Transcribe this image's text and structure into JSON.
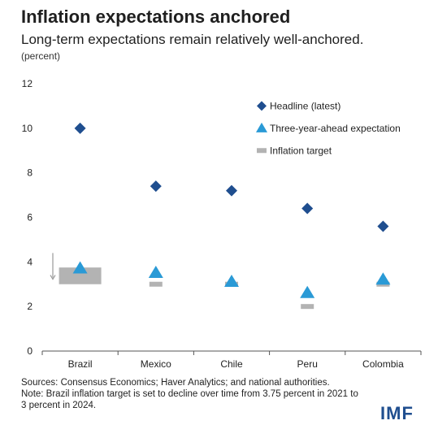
{
  "chart_data": {
    "type": "scatter",
    "title": "Inflation expectations anchored",
    "subtitle": "Long-term expectations remain relatively well-anchored.",
    "ylabel": "(percent)",
    "ylim": [
      0,
      12
    ],
    "yticks": [
      0,
      2,
      4,
      6,
      8,
      10,
      12
    ],
    "categories": [
      "Brazil",
      "Mexico",
      "Chile",
      "Peru",
      "Colombia"
    ],
    "grid": false,
    "legend_position": "top-right",
    "series": [
      {
        "name": "Headline (latest)",
        "marker": "diamond",
        "color": "#1f4e8f",
        "values": [
          10.0,
          7.4,
          7.2,
          6.4,
          5.6
        ]
      },
      {
        "name": "Three-year-ahead expectation",
        "marker": "triangle",
        "color": "#2a9ad6",
        "values": [
          3.7,
          3.5,
          3.1,
          2.6,
          3.2
        ]
      },
      {
        "name": "Inflation target",
        "marker": "bar",
        "color": "#b3b3b3",
        "values": [
          3.375,
          3.0,
          3.0,
          2.0,
          3.0
        ],
        "brazil_range": [
          3.0,
          3.75
        ]
      }
    ]
  },
  "footer": {
    "sources": "Sources: Consensus Economics; Haver Analytics; and national authorities.",
    "note": "Note: Brazil inflation target is set to decline over time from 3.75 percent in 2021 to 3 percent in 2024."
  },
  "logo": "IMF"
}
